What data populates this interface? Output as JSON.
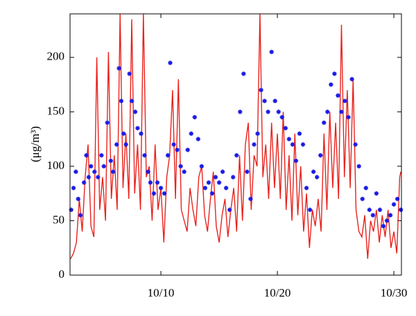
{
  "chart_data": {
    "type": "line",
    "y_label": "(μg/m³)",
    "xlim": [
      2.2,
      30.65
    ],
    "ylim": [
      0,
      240
    ],
    "xticks": [
      {
        "value": 10,
        "label": "10/10"
      },
      {
        "value": 20,
        "label": "10/20"
      },
      {
        "value": 30,
        "label": "10/30"
      }
    ],
    "yticks": [
      0,
      50,
      100,
      150,
      200
    ],
    "series": [
      {
        "type": "line",
        "color": "#e8221c",
        "x": [
          2.25,
          2.5,
          2.75,
          3,
          3.25,
          3.5,
          3.75,
          4,
          4.25,
          4.5,
          4.75,
          5,
          5.25,
          5.5,
          5.75,
          6,
          6.25,
          6.5,
          6.75,
          7,
          7.25,
          7.5,
          7.75,
          8,
          8.25,
          8.5,
          8.75,
          9,
          9.25,
          9.5,
          9.75,
          10,
          10.25,
          10.5,
          10.75,
          11,
          11.25,
          11.5,
          11.75,
          12,
          12.25,
          12.5,
          12.75,
          13,
          13.25,
          13.5,
          13.75,
          14,
          14.25,
          14.5,
          14.75,
          15,
          15.25,
          15.5,
          15.75,
          16,
          16.25,
          16.5,
          16.75,
          17,
          17.25,
          17.5,
          17.75,
          18,
          18.25,
          18.5,
          18.75,
          19,
          19.25,
          19.5,
          19.75,
          20,
          20.25,
          20.5,
          20.75,
          21,
          21.25,
          21.5,
          21.75,
          22,
          22.25,
          22.5,
          22.75,
          23,
          23.25,
          23.5,
          23.75,
          24,
          24.25,
          24.5,
          24.75,
          25,
          25.25,
          25.5,
          25.75,
          26,
          26.25,
          26.5,
          26.75,
          27,
          27.25,
          27.5,
          27.75,
          28,
          28.25,
          28.5,
          28.75,
          29,
          29.25,
          29.5,
          29.75,
          30,
          30.25,
          30.5,
          30.6
        ],
        "values": [
          15,
          20,
          30,
          70,
          40,
          90,
          120,
          45,
          35,
          200,
          60,
          90,
          50,
          205,
          70,
          110,
          60,
          240,
          80,
          130,
          70,
          235,
          75,
          120,
          60,
          240,
          90,
          100,
          50,
          120,
          60,
          80,
          30,
          90,
          110,
          170,
          70,
          180,
          60,
          50,
          40,
          80,
          60,
          45,
          90,
          100,
          55,
          40,
          70,
          95,
          45,
          30,
          55,
          70,
          35,
          60,
          80,
          40,
          110,
          50,
          120,
          140,
          60,
          110,
          100,
          240,
          90,
          120,
          70,
          140,
          80,
          130,
          70,
          150,
          60,
          110,
          50,
          130,
          55,
          100,
          40,
          75,
          25,
          60,
          45,
          70,
          40,
          130,
          60,
          150,
          80,
          140,
          70,
          230,
          90,
          170,
          80,
          180,
          60,
          40,
          35,
          55,
          15,
          50,
          40,
          60,
          30,
          55,
          35,
          60,
          25,
          40,
          20,
          90,
          95
        ]
      },
      {
        "type": "scatter",
        "color": "#1a1ae6",
        "x": [
          2.3,
          2.5,
          2.7,
          2.9,
          3.1,
          3.4,
          3.6,
          3.8,
          4.0,
          4.3,
          4.6,
          4.9,
          5.1,
          5.4,
          5.7,
          5.9,
          6.2,
          6.4,
          6.6,
          6.8,
          7.0,
          7.3,
          7.5,
          7.8,
          8.0,
          8.3,
          8.6,
          8.9,
          9.1,
          9.4,
          9.7,
          10.0,
          10.3,
          10.6,
          10.8,
          11.1,
          11.4,
          11.7,
          12.0,
          12.3,
          12.6,
          12.9,
          13.2,
          13.5,
          13.8,
          14.1,
          14.4,
          14.7,
          15.0,
          15.3,
          15.6,
          15.9,
          16.2,
          16.5,
          16.8,
          17.1,
          17.4,
          17.7,
          18.0,
          18.3,
          18.6,
          18.9,
          19.2,
          19.5,
          19.8,
          20.1,
          20.4,
          20.7,
          21.0,
          21.3,
          21.6,
          21.9,
          22.2,
          22.5,
          22.8,
          23.1,
          23.4,
          23.7,
          24.0,
          24.3,
          24.6,
          24.9,
          25.2,
          25.5,
          25.8,
          26.1,
          26.4,
          26.7,
          27.0,
          27.3,
          27.6,
          27.9,
          28.2,
          28.5,
          28.8,
          29.1,
          29.4,
          29.7,
          30.0,
          30.3,
          30.6
        ],
        "values": [
          60,
          80,
          95,
          70,
          55,
          85,
          110,
          90,
          100,
          95,
          90,
          110,
          100,
          140,
          105,
          95,
          120,
          190,
          160,
          130,
          120,
          185,
          160,
          150,
          135,
          130,
          110,
          95,
          85,
          75,
          85,
          80,
          75,
          110,
          195,
          120,
          115,
          100,
          95,
          115,
          130,
          145,
          125,
          100,
          80,
          85,
          75,
          90,
          85,
          95,
          80,
          60,
          90,
          110,
          150,
          185,
          95,
          70,
          120,
          130,
          170,
          160,
          150,
          205,
          160,
          150,
          145,
          135,
          125,
          120,
          105,
          130,
          120,
          80,
          60,
          95,
          90,
          110,
          140,
          150,
          175,
          185,
          165,
          150,
          160,
          145,
          180,
          120,
          100,
          70,
          80,
          60,
          55,
          75,
          60,
          45,
          50,
          55,
          65,
          70,
          60
        ]
      }
    ]
  }
}
